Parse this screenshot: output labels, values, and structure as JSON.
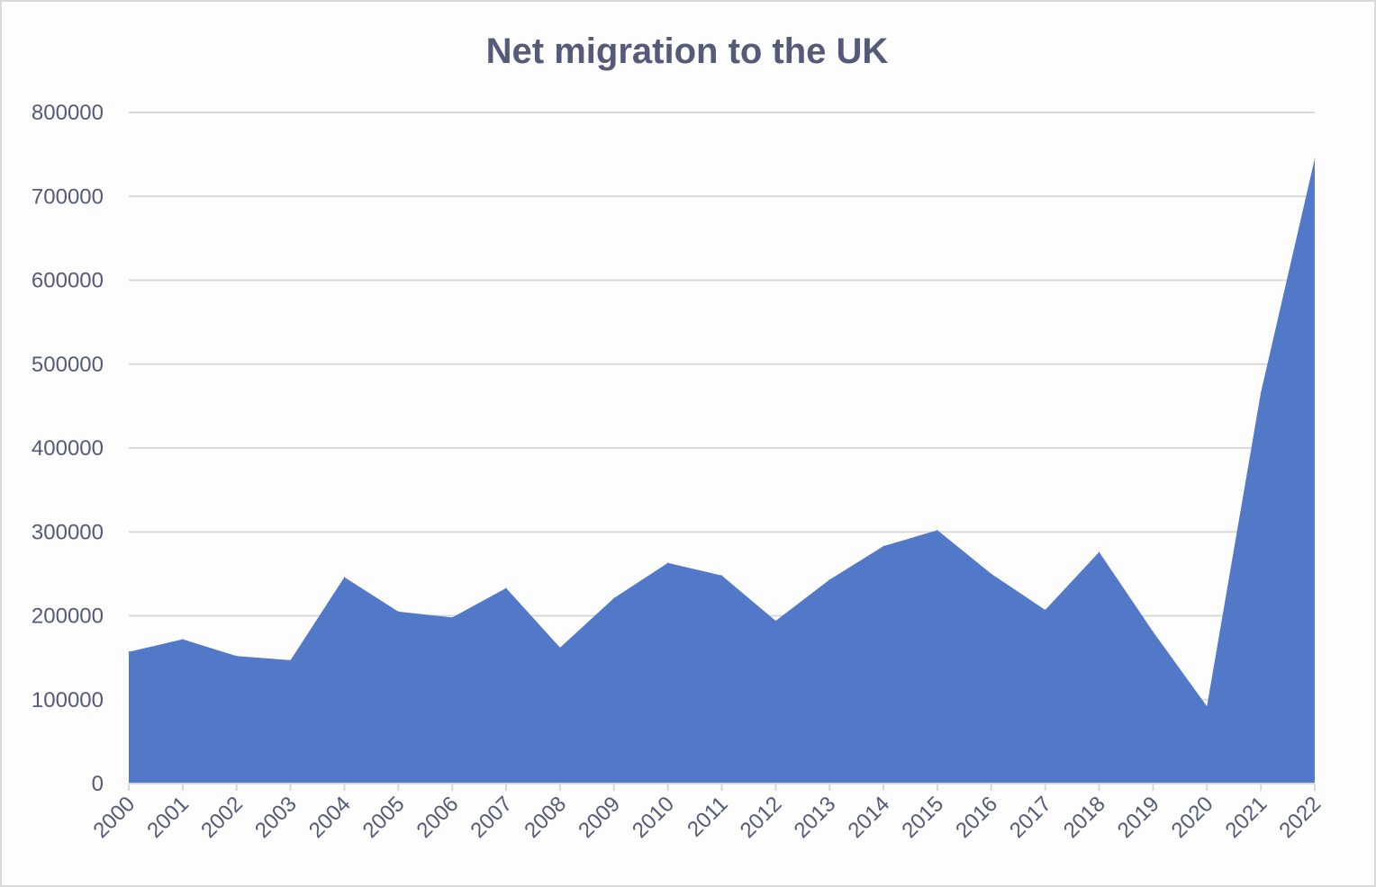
{
  "chart_data": {
    "type": "area",
    "title": "Net migration to the UK",
    "xlabel": "",
    "ylabel": "",
    "categories": [
      "2000",
      "2001",
      "2002",
      "2003",
      "2004",
      "2005",
      "2006",
      "2007",
      "2008",
      "2009",
      "2010",
      "2011",
      "2012",
      "2013",
      "2014",
      "2015",
      "2016",
      "2017",
      "2018",
      "2019",
      "2020",
      "2021",
      "2022"
    ],
    "values": [
      157000,
      172000,
      152000,
      147000,
      246000,
      205000,
      198000,
      233000,
      162000,
      221000,
      263000,
      248000,
      194000,
      243000,
      283000,
      302000,
      250000,
      207000,
      276000,
      181000,
      92000,
      466000,
      745000
    ],
    "ylim": [
      0,
      800000
    ],
    "yticks": [
      "0",
      "100000",
      "200000",
      "300000",
      "400000",
      "500000",
      "600000",
      "700000",
      "800000"
    ],
    "grid": true,
    "legend": "none",
    "colors": {
      "fill": "#5278c8",
      "text": "#545a78",
      "grid": "#d9d9d9"
    }
  }
}
